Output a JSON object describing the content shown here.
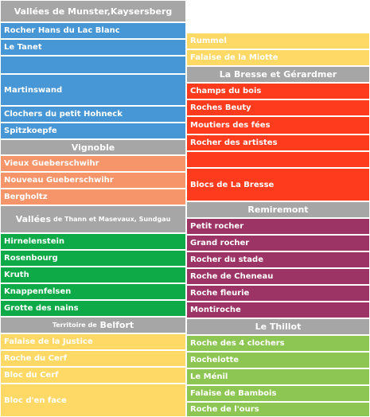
{
  "colors": {
    "header": "#a6a6a6",
    "blue": "#4796d5",
    "orange": "#f6956a",
    "green": "#0faa48",
    "yellow": "#ffd966",
    "red": "#ff3b1e",
    "purple": "#9c3466",
    "light_green": "#8dc652"
  },
  "left": {
    "munster": {
      "title": "Vallées de Munster,Kaysersberg",
      "items": [
        "Rocher Hans du Lac Blanc",
        "Le Tanet",
        "",
        "Martinswand",
        "Clochers du petit Hohneck",
        "Spitzkoepfe"
      ]
    },
    "vignoble": {
      "title": "Vignoble",
      "items": [
        "Vieux Gueberschwihr",
        "Nouveau Gueberschwihr",
        "Bergholtz"
      ]
    },
    "thann": {
      "title_prefix": "Vallées",
      "title_rest": "de Thann et Masevaux, Sundgau",
      "items": [
        "Hirnelenstein",
        "Rosenbourg",
        "Kruth",
        "Knappenfelsen",
        "Grotte des nains"
      ]
    },
    "belfort": {
      "title_prefix": "Territoire de",
      "title_rest": "Belfort",
      "items": [
        "Falaise de la Justice",
        "Roche du Cerf",
        "Bloc du Cerf",
        "Bloc d'en face"
      ]
    }
  },
  "right": {
    "top_items": [
      "Rummel",
      "Falaise de la Miotte"
    ],
    "bresse": {
      "title": "La Bresse et Gérardmer",
      "items": [
        "Champs du bois",
        "Roches Beuty",
        "Moutiers des fées",
        "Rocher des artistes",
        "",
        "Blocs de La Bresse"
      ]
    },
    "remiremont": {
      "title": "Remiremont",
      "items": [
        "Petit rocher",
        "Grand rocher",
        "Rocher du stade",
        "Roche de Cheneau",
        "Roche fleurie",
        "Montiroche"
      ]
    },
    "thillot": {
      "title": "Le Thillot",
      "items": [
        "Roche des 4 clochers",
        "Rochelotte",
        "Le Ménil",
        "Falaise de Bambois",
        "Roche de l'ours"
      ]
    }
  }
}
